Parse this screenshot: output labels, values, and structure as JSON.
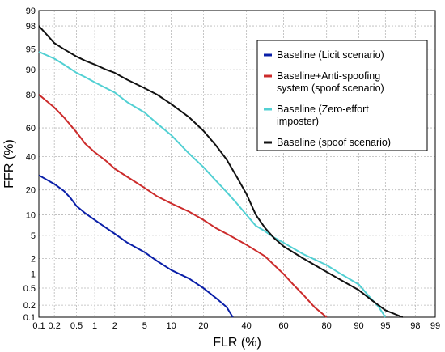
{
  "chart_data": {
    "type": "line",
    "title": "",
    "xlabel": "FLR (%)",
    "ylabel": "FFR (%)",
    "scale": "normal-deviate",
    "xlim": [
      0.1,
      99
    ],
    "ylim": [
      0.1,
      99
    ],
    "x_ticks": [
      "0.1",
      "0.2",
      "0.5",
      "1",
      "2",
      "5",
      "10",
      "20",
      "40",
      "60",
      "80",
      "90",
      "95",
      "98",
      "99"
    ],
    "y_ticks": [
      "0.1",
      "0.2",
      "0.5",
      "1",
      "2",
      "5",
      "10",
      "20",
      "40",
      "60",
      "80",
      "90",
      "95",
      "98",
      "99"
    ],
    "grid": true,
    "legend_position": "top-right",
    "series": [
      {
        "name": "Baseline (Licit scenario)",
        "color": "#0a1fa8",
        "points": [
          [
            0.1,
            28
          ],
          [
            0.2,
            23
          ],
          [
            0.3,
            19.5
          ],
          [
            0.4,
            16
          ],
          [
            0.5,
            13
          ],
          [
            0.7,
            10.5
          ],
          [
            1,
            8.5
          ],
          [
            1.5,
            6.5
          ],
          [
            2,
            5.3
          ],
          [
            3,
            3.8
          ],
          [
            5,
            2.6
          ],
          [
            7,
            1.8
          ],
          [
            10,
            1.2
          ],
          [
            15,
            0.8
          ],
          [
            20,
            0.5
          ],
          [
            25,
            0.3
          ],
          [
            30,
            0.18
          ],
          [
            33,
            0.1
          ]
        ]
      },
      {
        "name": "Baseline+Anti-spoofing system (spoof scenario)",
        "color": "#cc2b2b",
        "points": [
          [
            0.1,
            80
          ],
          [
            0.2,
            73
          ],
          [
            0.3,
            67
          ],
          [
            0.5,
            57
          ],
          [
            0.7,
            49
          ],
          [
            1,
            43
          ],
          [
            1.5,
            37
          ],
          [
            2,
            32
          ],
          [
            3,
            27
          ],
          [
            5,
            21
          ],
          [
            7,
            17
          ],
          [
            10,
            14
          ],
          [
            15,
            11
          ],
          [
            20,
            8.5
          ],
          [
            25,
            6.5
          ],
          [
            30,
            5.3
          ],
          [
            40,
            3.5
          ],
          [
            50,
            2.2
          ],
          [
            55,
            1.5
          ],
          [
            60,
            1
          ],
          [
            65,
            0.6
          ],
          [
            70,
            0.35
          ],
          [
            75,
            0.18
          ],
          [
            80,
            0.1
          ]
        ]
      },
      {
        "name": "Baseline (Zero-effort imposter)",
        "color": "#52d0d3",
        "points": [
          [
            0.1,
            94.5
          ],
          [
            0.2,
            93
          ],
          [
            0.3,
            91.5
          ],
          [
            0.5,
            89
          ],
          [
            0.7,
            87.5
          ],
          [
            1,
            85.5
          ],
          [
            1.5,
            83
          ],
          [
            2,
            81
          ],
          [
            3,
            76
          ],
          [
            5,
            70
          ],
          [
            7,
            63
          ],
          [
            10,
            55
          ],
          [
            15,
            42
          ],
          [
            20,
            33
          ],
          [
            25,
            25
          ],
          [
            30,
            19
          ],
          [
            35,
            14
          ],
          [
            40,
            10
          ],
          [
            45,
            7
          ],
          [
            50,
            5.8
          ],
          [
            55,
            4.6
          ],
          [
            60,
            3.8
          ],
          [
            70,
            2.4
          ],
          [
            80,
            1.5
          ],
          [
            85,
            1
          ],
          [
            90,
            0.6
          ],
          [
            92,
            0.35
          ],
          [
            94,
            0.18
          ],
          [
            95,
            0.1
          ]
        ]
      },
      {
        "name": "Baseline (spoof scenario)",
        "color": "#111111",
        "points": [
          [
            0.1,
            98
          ],
          [
            0.15,
            97
          ],
          [
            0.2,
            96
          ],
          [
            0.3,
            95
          ],
          [
            0.5,
            93.5
          ],
          [
            0.7,
            92.5
          ],
          [
            1,
            91.5
          ],
          [
            1.5,
            90
          ],
          [
            2,
            89
          ],
          [
            3,
            86.5
          ],
          [
            5,
            83
          ],
          [
            7,
            80
          ],
          [
            10,
            75
          ],
          [
            15,
            67
          ],
          [
            20,
            58
          ],
          [
            25,
            48
          ],
          [
            30,
            38
          ],
          [
            35,
            27
          ],
          [
            40,
            18
          ],
          [
            45,
            10
          ],
          [
            50,
            6.5
          ],
          [
            55,
            4.5
          ],
          [
            60,
            3.3
          ],
          [
            70,
            2
          ],
          [
            80,
            1.1
          ],
          [
            85,
            0.75
          ],
          [
            90,
            0.45
          ],
          [
            93,
            0.25
          ],
          [
            95,
            0.15
          ],
          [
            97,
            0.1
          ]
        ]
      }
    ]
  }
}
